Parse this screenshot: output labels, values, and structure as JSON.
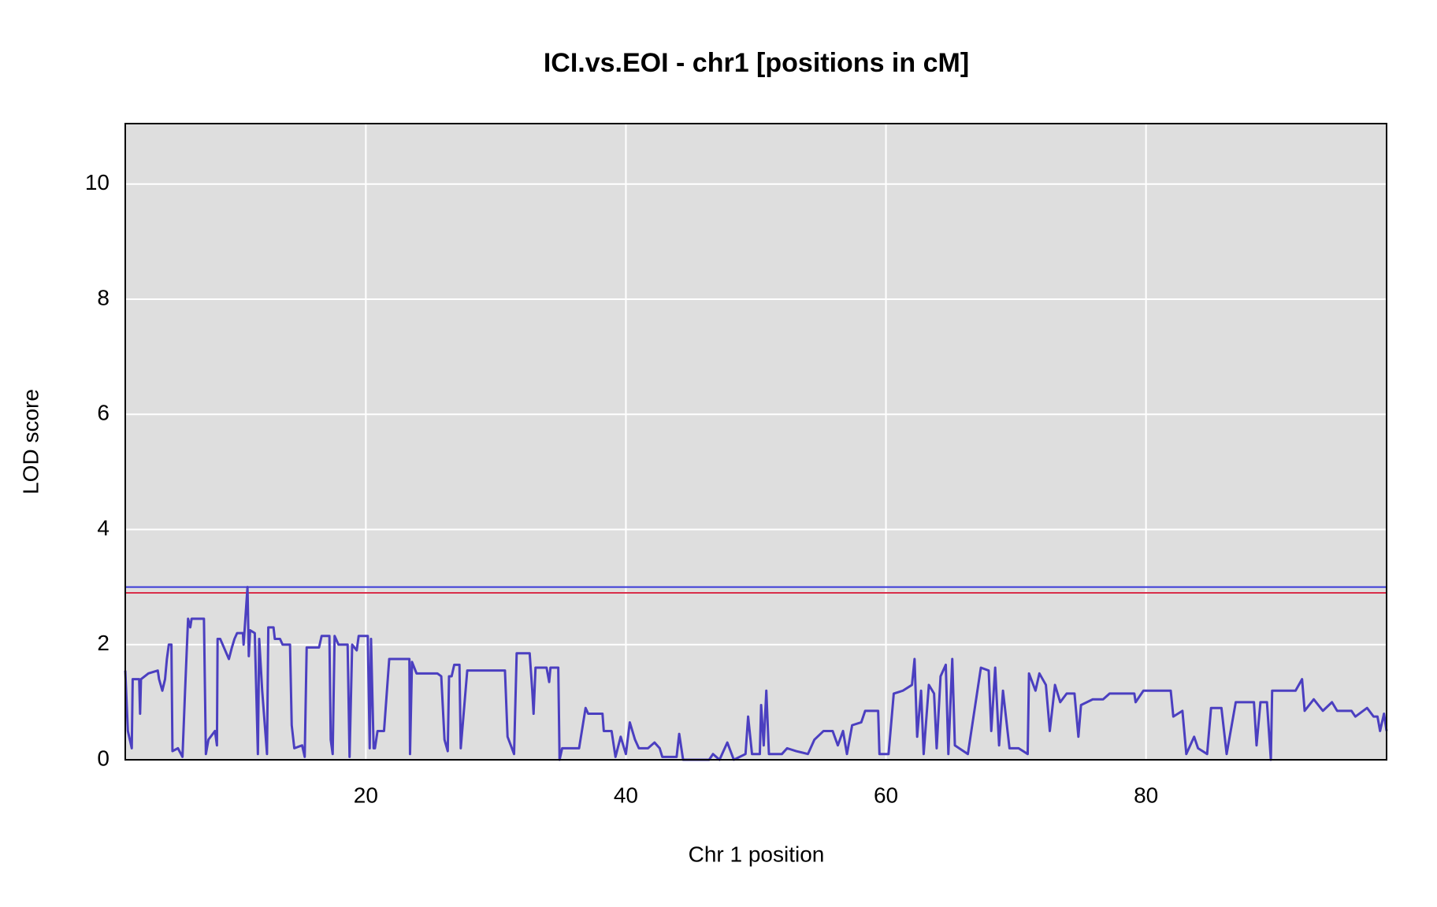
{
  "chart_data": {
    "type": "line",
    "title": "ICI.vs.EOI - chr1 [positions in cM]",
    "xlabel": "Chr 1 position",
    "ylabel": "LOD score",
    "xlim": [
      1.5,
      98.5
    ],
    "ylim": [
      0,
      11.05
    ],
    "xticks": [
      20,
      40,
      60,
      80
    ],
    "yticks": [
      0,
      2,
      4,
      6,
      8,
      10
    ],
    "grid": true,
    "background": "#dedede",
    "grid_color": "#ffffff",
    "hlines": [
      {
        "value": 3.0,
        "color": "#3a3ad6"
      },
      {
        "value": 2.9,
        "color": "#d92e4a"
      }
    ],
    "x": [
      1.5,
      1.7,
      2.0,
      2.07,
      2.57,
      2.64,
      2.71,
      3.28,
      4.0,
      4.1,
      4.35,
      4.56,
      4.7,
      4.85,
      5.05,
      5.13,
      5.55,
      5.9,
      6.1,
      6.33,
      6.5,
      6.6,
      7.55,
      7.7,
      7.9,
      8.4,
      8.55,
      8.6,
      8.8,
      9.47,
      9.7,
      9.9,
      10.1,
      10.55,
      10.6,
      10.9,
      11.0,
      11.1,
      11.46,
      11.7,
      11.8,
      12.03,
      12.4,
      12.5,
      12.9,
      13.0,
      13.4,
      13.6,
      14.17,
      14.3,
      14.5,
      15.1,
      15.3,
      15.45,
      16.4,
      16.6,
      17.2,
      17.3,
      17.45,
      17.6,
      17.9,
      18.6,
      18.75,
      18.95,
      19.3,
      19.45,
      20.15,
      20.3,
      20.4,
      20.6,
      20.7,
      20.9,
      21.4,
      21.8,
      23.35,
      23.4,
      23.55,
      23.9,
      25.5,
      25.8,
      26.05,
      26.3,
      26.4,
      26.6,
      26.8,
      27.2,
      27.3,
      27.8,
      30.7,
      30.9,
      31.4,
      31.6,
      32.6,
      32.8,
      32.9,
      33.05,
      33.9,
      34.1,
      34.2,
      34.8,
      34.9,
      35.1,
      36.4,
      36.9,
      37.1,
      38.2,
      38.3,
      38.9,
      39.2,
      39.6,
      40.0,
      40.3,
      40.7,
      41.0,
      41.7,
      42.2,
      42.6,
      42.8,
      43.9,
      44.1,
      44.4,
      46.4,
      46.7,
      47.2,
      47.8,
      48.3,
      49.2,
      49.4,
      49.7,
      50.3,
      50.4,
      50.6,
      50.8,
      51.0,
      52.0,
      52.4,
      53.1,
      54.0,
      54.5,
      55.2,
      55.9,
      56.3,
      56.7,
      57.0,
      57.4,
      58.1,
      58.4,
      59.4,
      59.5,
      60.2,
      60.6,
      61.3,
      62.0,
      62.2,
      62.4,
      62.7,
      62.9,
      63.3,
      63.7,
      63.9,
      64.2,
      64.6,
      64.8,
      65.1,
      65.3,
      66.3,
      67.3,
      67.9,
      68.1,
      68.4,
      68.7,
      69.0,
      69.5,
      70.2,
      70.9,
      71.0,
      71.5,
      71.8,
      72.3,
      72.6,
      73.0,
      73.4,
      73.9,
      74.5,
      74.8,
      75.0,
      75.9,
      76.7,
      77.2,
      79.1,
      79.2,
      79.8,
      81.9,
      82.1,
      82.8,
      83.1,
      83.7,
      84.0,
      84.7,
      85.0,
      85.8,
      86.2,
      86.9,
      88.3,
      88.5,
      88.8,
      89.3,
      89.6,
      89.7,
      91.5,
      92.0,
      92.2,
      92.9,
      93.6,
      94.3,
      94.7,
      95.8,
      96.1,
      97.0,
      97.5,
      97.8,
      98.0,
      98.3,
      98.5
    ],
    "series": [
      {
        "color": "#4b3fc0",
        "values": [
          1.55,
          0.5,
          0.2,
          1.4,
          1.4,
          0.8,
          1.4,
          1.5,
          1.55,
          1.4,
          1.2,
          1.4,
          1.75,
          2.0,
          2.0,
          0.15,
          0.2,
          0.05,
          1.2,
          2.45,
          2.3,
          2.45,
          2.45,
          0.1,
          0.35,
          0.5,
          0.25,
          2.1,
          2.1,
          1.75,
          1.95,
          2.1,
          2.2,
          2.2,
          2.0,
          3.0,
          1.8,
          2.25,
          2.2,
          0.1,
          2.1,
          1.2,
          0.1,
          2.3,
          2.3,
          2.1,
          2.1,
          2.0,
          2.0,
          0.6,
          0.2,
          0.25,
          0.05,
          1.95,
          1.95,
          2.15,
          2.15,
          0.35,
          0.1,
          2.15,
          2.0,
          2.0,
          0.05,
          2.0,
          1.9,
          2.15,
          2.15,
          0.2,
          2.1,
          0.2,
          0.2,
          0.5,
          0.5,
          1.75,
          1.75,
          0.1,
          1.7,
          1.5,
          1.5,
          1.45,
          0.35,
          0.15,
          1.45,
          1.45,
          1.65,
          1.65,
          0.2,
          1.55,
          1.55,
          0.4,
          0.1,
          1.85,
          1.85,
          1.2,
          0.8,
          1.6,
          1.6,
          1.35,
          1.6,
          1.6,
          0,
          0.2,
          0.2,
          0.9,
          0.8,
          0.8,
          0.5,
          0.5,
          0.05,
          0.4,
          0.1,
          0.65,
          0.35,
          0.2,
          0.2,
          0.3,
          0.2,
          0.05,
          0.05,
          0.45,
          0,
          0,
          0.1,
          0,
          0.3,
          0,
          0.1,
          0.75,
          0.1,
          0.1,
          0.95,
          0.25,
          1.2,
          0.1,
          0.1,
          0.2,
          0.15,
          0.1,
          0.35,
          0.5,
          0.5,
          0.25,
          0.5,
          0.1,
          0.6,
          0.65,
          0.85,
          0.85,
          0.1,
          0.1,
          1.15,
          1.2,
          1.3,
          1.75,
          0.4,
          1.2,
          0.1,
          1.3,
          1.15,
          0.2,
          1.45,
          1.65,
          0.1,
          1.75,
          0.25,
          0.1,
          1.6,
          1.55,
          0.5,
          1.6,
          0.25,
          1.2,
          0.2,
          0.2,
          0.1,
          1.5,
          1.2,
          1.5,
          1.3,
          0.5,
          1.3,
          1.0,
          1.15,
          1.15,
          0.4,
          0.95,
          1.05,
          1.05,
          1.15,
          1.15,
          1.0,
          1.2,
          1.2,
          0.75,
          0.85,
          0.1,
          0.4,
          0.2,
          0.1,
          0.9,
          0.9,
          0.1,
          1.0,
          1.0,
          0.25,
          1.0,
          1.0,
          0,
          1.2,
          1.2,
          1.4,
          0.85,
          1.05,
          0.85,
          1.0,
          0.85,
          0.85,
          0.75,
          0.9,
          0.75,
          0.75,
          0.5,
          0.8,
          0.5
        ]
      }
    ]
  }
}
